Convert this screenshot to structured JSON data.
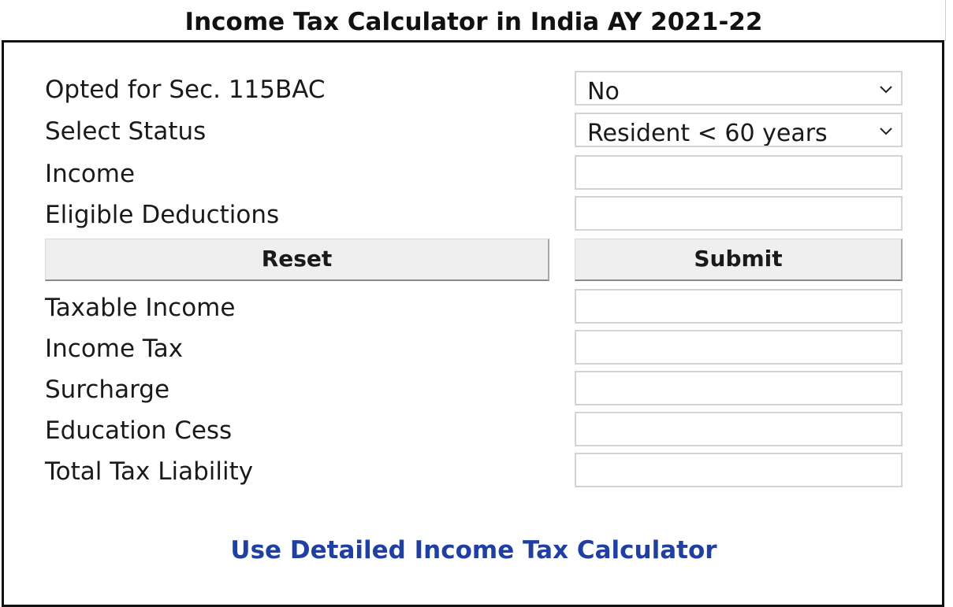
{
  "title": "Income Tax Calculator in India AY 2021-22",
  "form": {
    "opted_label": "Opted for Sec. 115BAC",
    "opted_value": "No",
    "status_label": "Select Status",
    "status_value": "Resident < 60 years",
    "income_label": "Income",
    "income_value": "",
    "deductions_label": "Eligible Deductions",
    "deductions_value": ""
  },
  "buttons": {
    "reset": "Reset",
    "submit": "Submit"
  },
  "results": {
    "taxable_income_label": "Taxable Income",
    "taxable_income_value": "",
    "income_tax_label": "Income Tax",
    "income_tax_value": "",
    "surcharge_label": "Surcharge",
    "surcharge_value": "",
    "education_cess_label": "Education Cess",
    "education_cess_value": "",
    "total_tax_label": "Total Tax Liability",
    "total_tax_value": ""
  },
  "link_text": "Use Detailed Income Tax Calculator",
  "icons": {
    "dropdown": "chevron-down-icon"
  },
  "colors": {
    "link": "#1f3fa3",
    "button_bg": "#efefef",
    "border": "#111111"
  }
}
